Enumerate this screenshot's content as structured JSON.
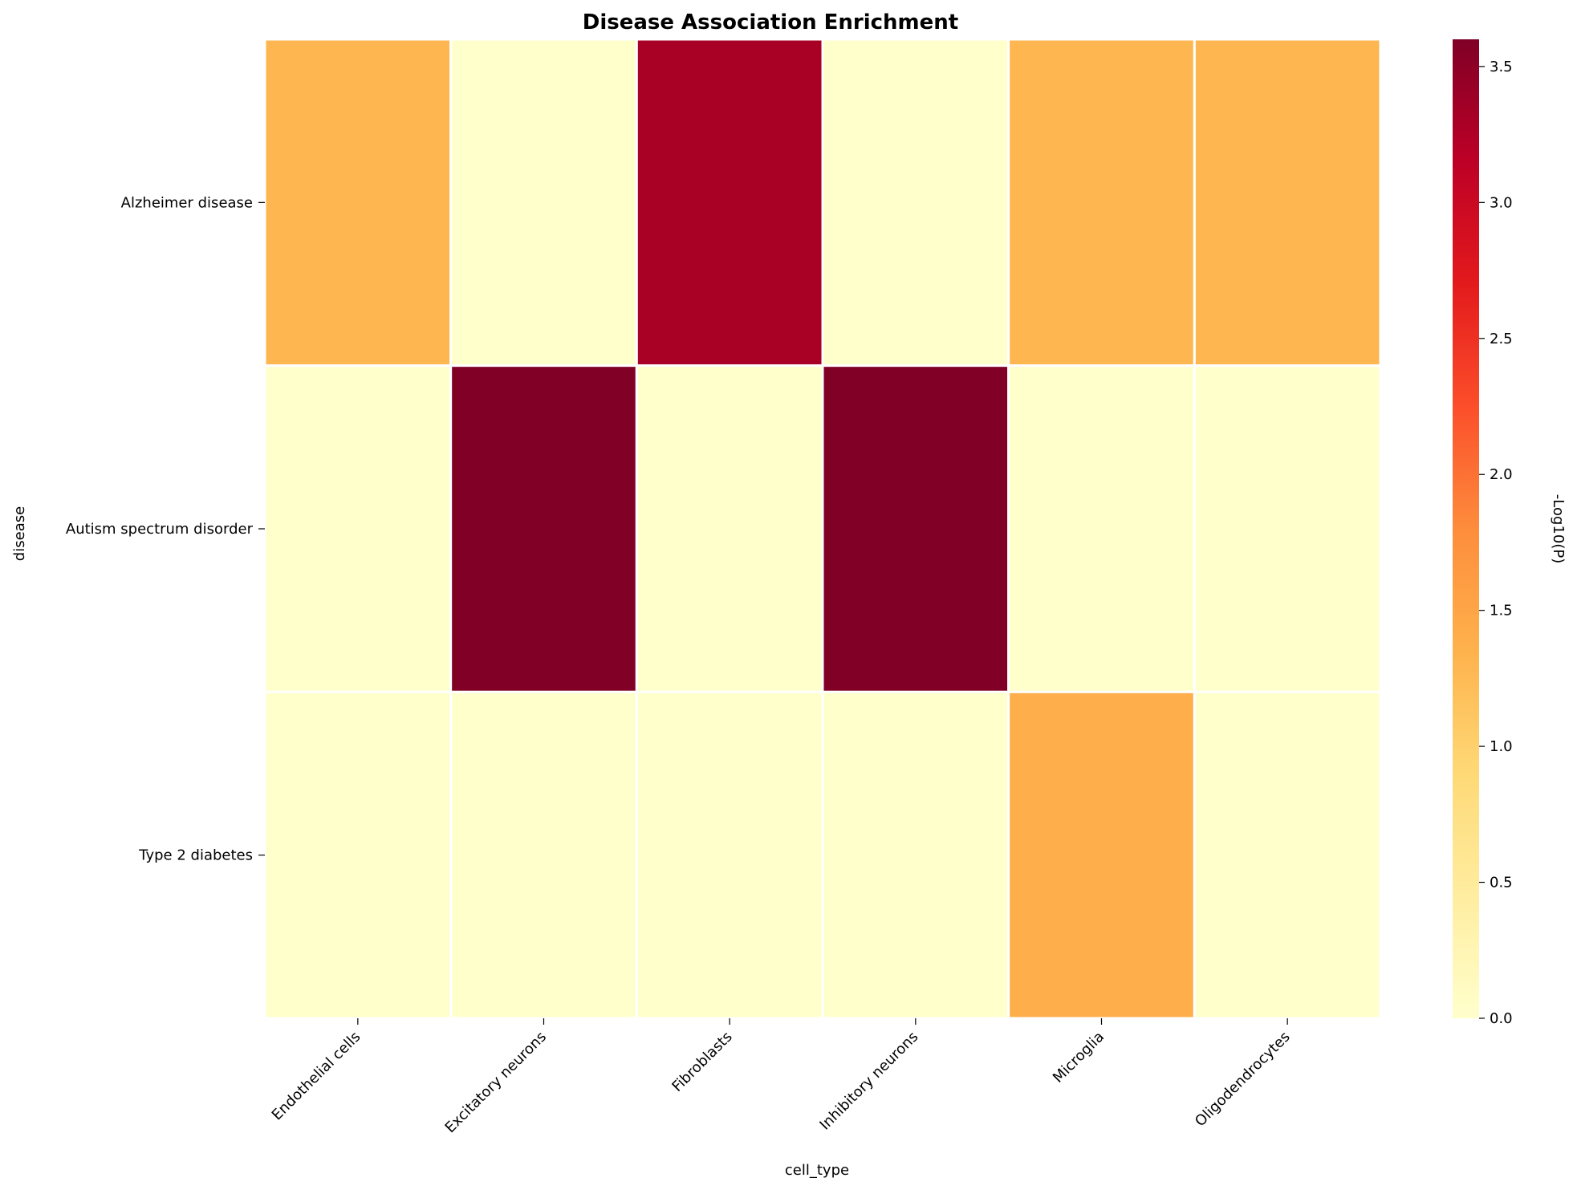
{
  "chart_data": {
    "type": "heatmap",
    "title": "Disease Association Enrichment",
    "xlabel": "cell_type",
    "ylabel": "disease",
    "x_categories": [
      "Endothelial cells",
      "Excitatory neurons",
      "Fibroblasts",
      "Inhibitory neurons",
      "Microglia",
      "Oligodendrocytes"
    ],
    "y_categories": [
      "Alzheimer disease",
      "Autism spectrum disorder",
      "Type 2 diabetes"
    ],
    "values": [
      [
        1.3,
        0.0,
        3.3,
        0.0,
        1.3,
        1.3
      ],
      [
        0.0,
        3.6,
        0.0,
        3.6,
        0.0,
        0.0
      ],
      [
        0.0,
        0.0,
        0.0,
        0.0,
        1.4,
        0.0
      ]
    ],
    "colorbar": {
      "label": "-Log10(P)",
      "range": [
        0,
        3.6
      ],
      "ticks": [
        "0.0",
        "0.5",
        "1.0",
        "1.5",
        "2.0",
        "2.5",
        "3.0",
        "3.5"
      ],
      "colormap": "YlOrRd",
      "colors": [
        "#ffffcc",
        "#ffeda0",
        "#fed976",
        "#feb24c",
        "#fd8d3c",
        "#fc4e2a",
        "#e31a1c",
        "#bd0026",
        "#800026"
      ]
    },
    "grid": false,
    "legend": "colorbar-right"
  }
}
